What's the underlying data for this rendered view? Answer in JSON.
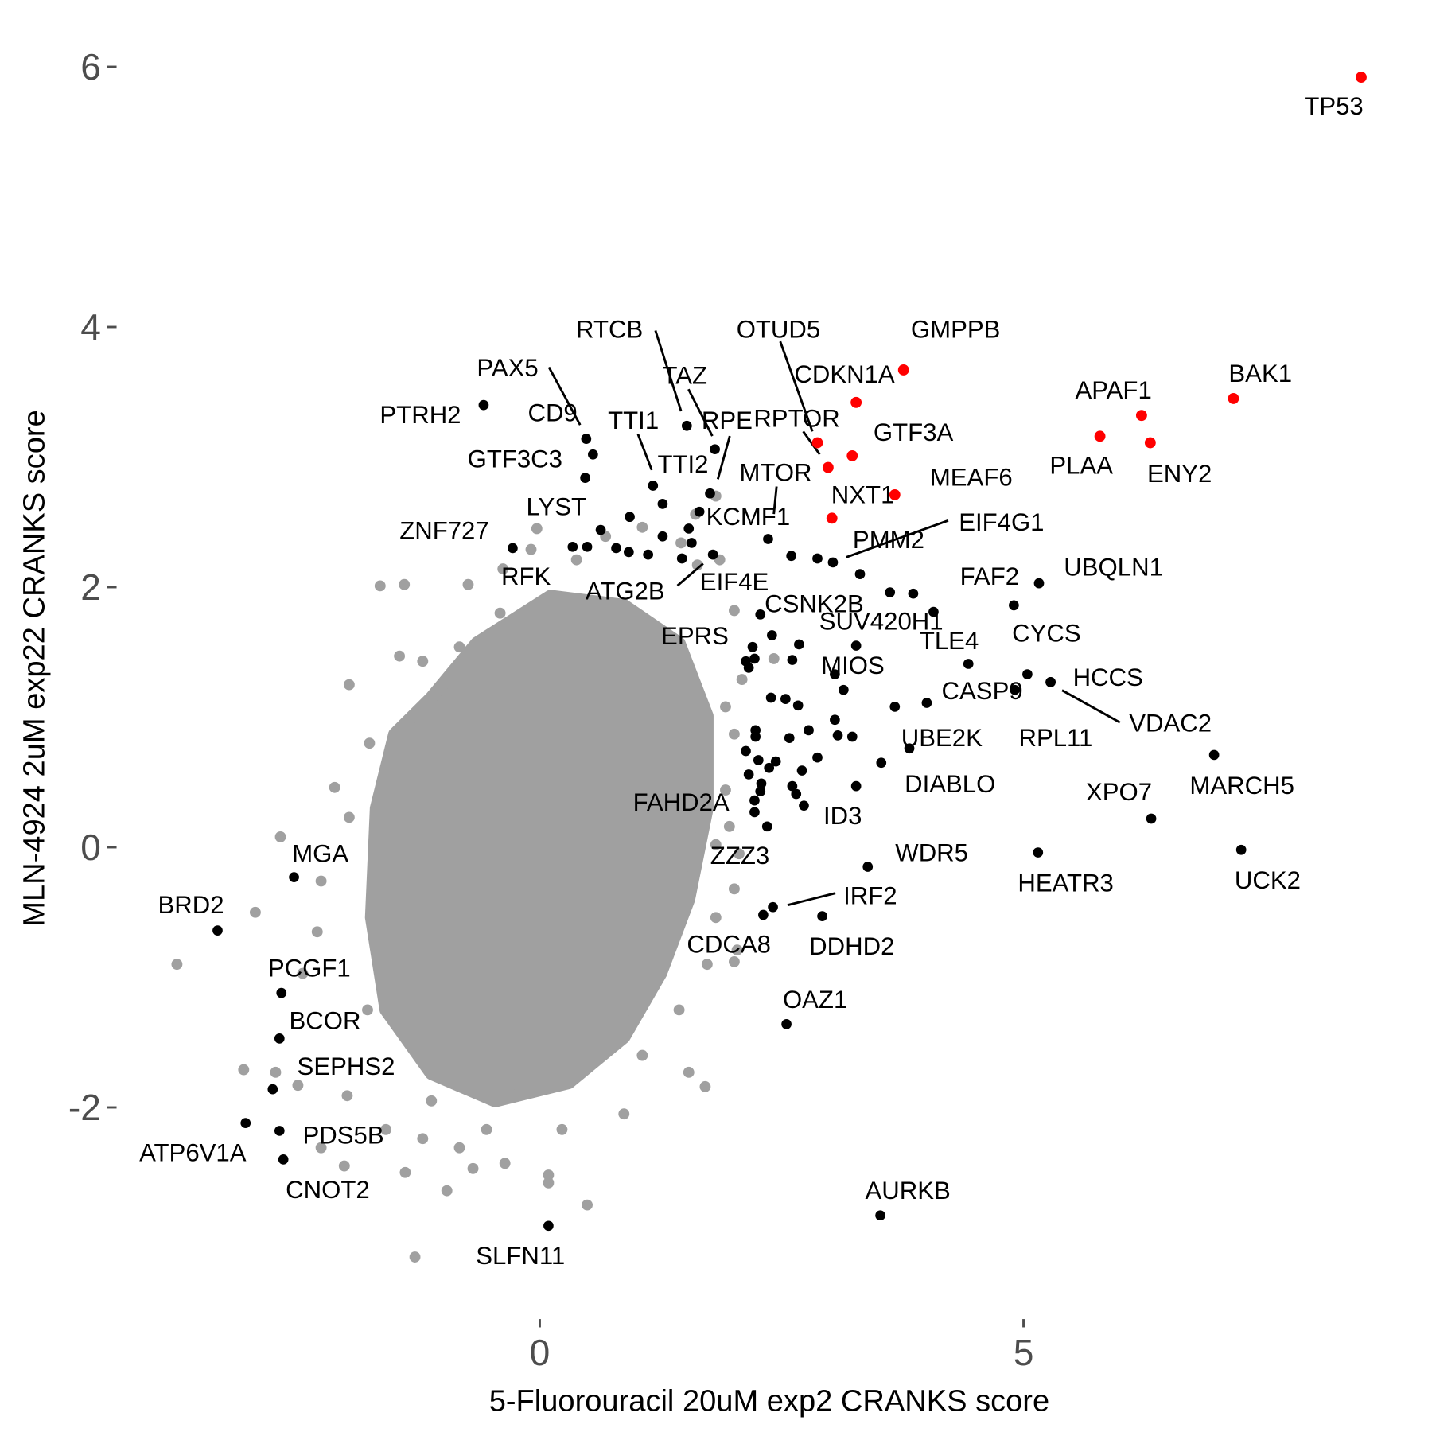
{
  "chart_data": {
    "type": "scatter",
    "title": "",
    "xlabel": "5-Fluorouracil 20uM exp2 CRANKS score",
    "ylabel": "MLN-4924 2uM exp22 CRANKS score",
    "xlim": [
      -4.0,
      8.7
    ],
    "ylim": [
      -3.4,
      6.3
    ],
    "x_ticks": [
      0,
      5
    ],
    "y_ticks": [
      -2,
      0,
      2,
      4,
      6
    ],
    "grid": false,
    "legend": "none",
    "colors": {
      "background": "#a0a0a0",
      "hit": "#000000",
      "top": "#ff0000",
      "tick": "#4d4d4d"
    },
    "background_core_outline": [
      [
        -1.12,
        1.15
      ],
      [
        -0.65,
        1.57
      ],
      [
        0.11,
        1.93
      ],
      [
        0.87,
        1.86
      ],
      [
        1.44,
        1.57
      ],
      [
        1.73,
        1.01
      ],
      [
        1.73,
        0.3
      ],
      [
        1.54,
        -0.4
      ],
      [
        1.25,
        -0.97
      ],
      [
        0.87,
        -1.46
      ],
      [
        0.3,
        -1.81
      ],
      [
        -0.46,
        -1.95
      ],
      [
        -1.12,
        -1.74
      ],
      [
        -1.59,
        -1.25
      ],
      [
        -1.74,
        -0.54
      ],
      [
        -1.69,
        0.3
      ],
      [
        -1.5,
        0.87
      ]
    ],
    "background_points": [
      [
        -3.75,
        -0.9
      ],
      [
        -2.94,
        -0.5
      ],
      [
        -2.68,
        0.08
      ],
      [
        -1.97,
        1.25
      ],
      [
        -1.65,
        2.01
      ],
      [
        -1.4,
        2.02
      ],
      [
        -0.74,
        2.02
      ],
      [
        -0.03,
        2.45
      ],
      [
        -0.09,
        2.29
      ],
      [
        -1.45,
        1.47
      ],
      [
        -1.76,
        0.8
      ],
      [
        -2.12,
        0.46
      ],
      [
        -1.97,
        0.23
      ],
      [
        -2.26,
        -0.26
      ],
      [
        -2.3,
        -0.65
      ],
      [
        -2.45,
        -0.97
      ],
      [
        -3.06,
        -1.71
      ],
      [
        -2.73,
        -1.73
      ],
      [
        -2.5,
        -1.83
      ],
      [
        -2.26,
        -2.31
      ],
      [
        -2.02,
        -2.45
      ],
      [
        -1.99,
        -1.91
      ],
      [
        -1.59,
        -2.17
      ],
      [
        -1.39,
        -2.5
      ],
      [
        -1.29,
        -3.15
      ],
      [
        -0.96,
        -2.64
      ],
      [
        -0.69,
        -2.47
      ],
      [
        -0.36,
        -2.43
      ],
      [
        0.09,
        -2.52
      ],
      [
        0.09,
        -2.58
      ],
      [
        0.49,
        -2.75
      ],
      [
        0.87,
        -2.05
      ],
      [
        1.54,
        -1.73
      ],
      [
        1.71,
        -1.84
      ],
      [
        2.01,
        -0.88
      ],
      [
        2.04,
        -0.79
      ],
      [
        1.82,
        -0.54
      ],
      [
        2.01,
        -0.32
      ],
      [
        2.06,
        -0.05
      ],
      [
        1.96,
        0.16
      ],
      [
        1.92,
        0.44
      ],
      [
        2.01,
        0.87
      ],
      [
        1.92,
        1.08
      ],
      [
        2.09,
        1.29
      ],
      [
        2.01,
        1.82
      ],
      [
        1.86,
        2.21
      ],
      [
        1.63,
        2.17
      ],
      [
        1.46,
        2.34
      ],
      [
        1.61,
        2.56
      ],
      [
        1.82,
        2.7
      ],
      [
        1.06,
        2.46
      ],
      [
        0.68,
        2.39
      ],
      [
        0.38,
        2.21
      ],
      [
        -0.38,
        2.14
      ],
      [
        -0.41,
        1.8
      ],
      [
        -0.83,
        1.54
      ],
      [
        -1.21,
        1.43
      ],
      [
        2.42,
        1.45
      ],
      [
        -1.5,
        -0.54
      ],
      [
        -1.78,
        -1.25
      ],
      [
        -1.21,
        -2.24
      ],
      [
        -0.55,
        -2.17
      ],
      [
        0.23,
        -2.17
      ],
      [
        1.06,
        -1.6
      ],
      [
        1.44,
        -1.25
      ],
      [
        1.73,
        -0.9
      ],
      [
        1.82,
        0.02
      ],
      [
        1.63,
        0.73
      ],
      [
        1.25,
        1.43
      ],
      [
        0.68,
        1.71
      ],
      [
        -1.12,
        -1.95
      ],
      [
        -0.83,
        -2.31
      ]
    ],
    "hit_points_unlabeled": [
      [
        0.93,
        2.54
      ],
      [
        0.79,
        2.3
      ],
      [
        0.92,
        2.27
      ],
      [
        1.27,
        2.39
      ],
      [
        1.54,
        2.45
      ],
      [
        1.57,
        2.34
      ],
      [
        1.47,
        2.22
      ],
      [
        2.6,
        2.24
      ],
      [
        3.31,
        2.1
      ],
      [
        3.62,
        1.96
      ],
      [
        3.86,
        1.95
      ],
      [
        2.4,
        1.63
      ],
      [
        2.68,
        1.56
      ],
      [
        2.13,
        1.43
      ],
      [
        2.22,
        1.45
      ],
      [
        2.16,
        1.38
      ],
      [
        2.61,
        1.44
      ],
      [
        3.27,
        1.55
      ],
      [
        3.14,
        1.21
      ],
      [
        3.67,
        1.08
      ],
      [
        2.39,
        1.15
      ],
      [
        2.54,
        1.14
      ],
      [
        2.67,
        1.09
      ],
      [
        3.05,
        0.98
      ],
      [
        2.78,
        0.9
      ],
      [
        2.23,
        0.9
      ],
      [
        2.23,
        0.85
      ],
      [
        2.58,
        0.84
      ],
      [
        3.08,
        0.86
      ],
      [
        3.23,
        0.85
      ],
      [
        2.13,
        0.74
      ],
      [
        2.26,
        0.67
      ],
      [
        2.44,
        0.66
      ],
      [
        2.37,
        0.61
      ],
      [
        2.71,
        0.59
      ],
      [
        2.87,
        0.69
      ],
      [
        2.16,
        0.56
      ],
      [
        2.29,
        0.49
      ],
      [
        2.61,
        0.47
      ],
      [
        2.65,
        0.41
      ],
      [
        2.22,
        0.27
      ],
      [
        3.27,
        0.47
      ],
      [
        2.28,
        0.43
      ],
      [
        0.49,
        2.31
      ]
    ],
    "labeled_points": [
      {
        "gene": "TP53",
        "x": 8.49,
        "y": 5.92,
        "group": "top"
      },
      {
        "gene": "BAK1",
        "x": 7.17,
        "y": 3.45,
        "group": "top"
      },
      {
        "gene": "APAF1",
        "x": 6.22,
        "y": 3.32,
        "group": "top"
      },
      {
        "gene": "ENY2",
        "x": 6.31,
        "y": 3.11,
        "group": "top"
      },
      {
        "gene": "PLAA",
        "x": 5.79,
        "y": 3.16,
        "group": "top"
      },
      {
        "gene": "GMPPB",
        "x": 3.76,
        "y": 3.67,
        "group": "top"
      },
      {
        "gene": "CDKN1A",
        "x": 3.27,
        "y": 3.42,
        "group": "top"
      },
      {
        "gene": "OTUD5",
        "x": 2.87,
        "y": 3.11,
        "group": "top"
      },
      {
        "gene": "RPTOR",
        "x": 2.98,
        "y": 2.92,
        "group": "top"
      },
      {
        "gene": "GTF3A",
        "x": 3.23,
        "y": 3.01,
        "group": "top"
      },
      {
        "gene": "MEAF6",
        "x": 3.67,
        "y": 2.71,
        "group": "top"
      },
      {
        "gene": "NXT1",
        "x": 3.02,
        "y": 2.53,
        "group": "top"
      },
      {
        "gene": "PTRH2",
        "x": -0.58,
        "y": 3.4,
        "group": "hit"
      },
      {
        "gene": "PAX5",
        "x": 0.48,
        "y": 3.14,
        "group": "hit"
      },
      {
        "gene": "CD9",
        "x": 0.55,
        "y": 3.02,
        "group": "hit"
      },
      {
        "gene": "GTF3C3",
        "x": 0.47,
        "y": 2.84,
        "group": "hit"
      },
      {
        "gene": "RTCB",
        "x": 1.52,
        "y": 3.24,
        "group": "hit"
      },
      {
        "gene": "TAZ",
        "x": 1.81,
        "y": 3.06,
        "group": "hit"
      },
      {
        "gene": "RPE",
        "x": 1.76,
        "y": 2.72,
        "group": "hit"
      },
      {
        "gene": "TTI1",
        "x": 1.17,
        "y": 2.78,
        "group": "hit"
      },
      {
        "gene": "TTI2",
        "x": 1.27,
        "y": 2.64,
        "group": "hit"
      },
      {
        "gene": "KCMF1",
        "x": 1.65,
        "y": 2.58,
        "group": "hit"
      },
      {
        "gene": "MTOR",
        "x": 2.36,
        "y": 2.37,
        "group": "hit"
      },
      {
        "gene": "LYST",
        "x": 0.63,
        "y": 2.44,
        "group": "hit"
      },
      {
        "gene": "ZNF727",
        "x": -0.28,
        "y": 2.3,
        "group": "hit"
      },
      {
        "gene": "RFK",
        "x": 0.34,
        "y": 2.31,
        "group": "hit"
      },
      {
        "gene": "ATG2B",
        "x": 1.12,
        "y": 2.25,
        "group": "hit"
      },
      {
        "gene": "EIF4E",
        "x": 1.79,
        "y": 2.25,
        "group": "hit"
      },
      {
        "gene": "PMM2",
        "x": 2.87,
        "y": 2.22,
        "group": "hit"
      },
      {
        "gene": "EIF4G1",
        "x": 3.03,
        "y": 2.19,
        "group": "hit"
      },
      {
        "gene": "CSNK2B",
        "x": 2.28,
        "y": 1.79,
        "group": "hit"
      },
      {
        "gene": "SUV420H1",
        "x": 4.07,
        "y": 1.81,
        "group": "hit"
      },
      {
        "gene": "TLE4",
        "x": 4.43,
        "y": 1.41,
        "group": "hit"
      },
      {
        "gene": "FAF2",
        "x": 4.9,
        "y": 1.86,
        "group": "hit"
      },
      {
        "gene": "UBQLN1",
        "x": 5.16,
        "y": 2.03,
        "group": "hit"
      },
      {
        "gene": "CYCS",
        "x": 5.04,
        "y": 1.33,
        "group": "hit"
      },
      {
        "gene": "HCCS",
        "x": 5.28,
        "y": 1.27,
        "group": "hit"
      },
      {
        "gene": "VDAC2",
        "x": 5.28,
        "y": 1.27,
        "group": "hit"
      },
      {
        "gene": "RPL11",
        "x": 4.91,
        "y": 1.21,
        "group": "hit"
      },
      {
        "gene": "CASP9",
        "x": 4.0,
        "y": 1.11,
        "group": "hit"
      },
      {
        "gene": "UBE2K",
        "x": 3.82,
        "y": 0.76,
        "group": "hit"
      },
      {
        "gene": "DIABLO",
        "x": 3.53,
        "y": 0.65,
        "group": "hit"
      },
      {
        "gene": "MIOS",
        "x": 3.05,
        "y": 1.33,
        "group": "hit"
      },
      {
        "gene": "EPRS",
        "x": 2.2,
        "y": 1.54,
        "group": "hit"
      },
      {
        "gene": "FAHD2A",
        "x": 2.22,
        "y": 0.36,
        "group": "hit"
      },
      {
        "gene": "ZZZ3",
        "x": 2.35,
        "y": 0.16,
        "group": "hit"
      },
      {
        "gene": "ID3",
        "x": 2.73,
        "y": 0.32,
        "group": "hit"
      },
      {
        "gene": "WDR5",
        "x": 3.39,
        "y": -0.15,
        "group": "hit"
      },
      {
        "gene": "IRF2",
        "x": 2.41,
        "y": -0.46,
        "group": "hit"
      },
      {
        "gene": "CDCA8",
        "x": 2.31,
        "y": -0.52,
        "group": "hit"
      },
      {
        "gene": "DDHD2",
        "x": 2.92,
        "y": -0.53,
        "group": "hit"
      },
      {
        "gene": "OAZ1",
        "x": 2.55,
        "y": -1.36,
        "group": "hit"
      },
      {
        "gene": "AURKB",
        "x": 3.52,
        "y": -2.83,
        "group": "hit"
      },
      {
        "gene": "SLFN11",
        "x": 0.09,
        "y": -2.91,
        "group": "hit"
      },
      {
        "gene": "HEATR3",
        "x": 5.15,
        "y": -0.04,
        "group": "hit"
      },
      {
        "gene": "XPO7",
        "x": 6.32,
        "y": 0.22,
        "group": "hit"
      },
      {
        "gene": "MARCH5",
        "x": 6.97,
        "y": 0.71,
        "group": "hit"
      },
      {
        "gene": "UCK2",
        "x": 7.25,
        "y": -0.02,
        "group": "hit"
      },
      {
        "gene": "MGA",
        "x": -2.54,
        "y": -0.23,
        "group": "hit"
      },
      {
        "gene": "BRD2",
        "x": -3.33,
        "y": -0.64,
        "group": "hit"
      },
      {
        "gene": "PCGF1",
        "x": -2.67,
        "y": -1.12,
        "group": "hit"
      },
      {
        "gene": "BCOR",
        "x": -2.69,
        "y": -1.47,
        "group": "hit"
      },
      {
        "gene": "SEPHS2",
        "x": -2.76,
        "y": -1.86,
        "group": "hit"
      },
      {
        "gene": "ATP6V1A",
        "x": -3.04,
        "y": -2.12,
        "group": "hit"
      },
      {
        "gene": "PDS5B",
        "x": -2.69,
        "y": -2.18,
        "group": "hit"
      },
      {
        "gene": "CNOT2",
        "x": -2.65,
        "y": -2.4,
        "group": "hit"
      }
    ]
  }
}
